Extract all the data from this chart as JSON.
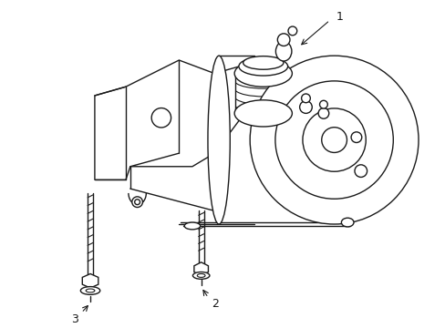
{
  "background_color": "#ffffff",
  "line_color": "#1a1a1a",
  "line_width": 1.0,
  "label1": "1",
  "label2": "2",
  "label3": "3",
  "figsize": [
    4.89,
    3.6
  ],
  "dpi": 100
}
